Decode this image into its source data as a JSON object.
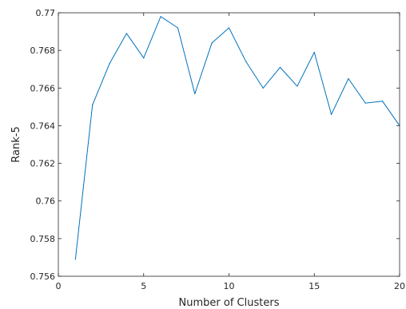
{
  "chart_data": {
    "type": "line",
    "title": "",
    "xlabel": "Number of Clusters",
    "ylabel": "Rank-5",
    "xlim": [
      0,
      20
    ],
    "ylim": [
      0.756,
      0.77
    ],
    "xticks": [
      0,
      5,
      10,
      15,
      20
    ],
    "yticks": [
      0.756,
      0.758,
      0.76,
      0.762,
      0.764,
      0.766,
      0.768,
      0.77
    ],
    "xtick_labels": [
      "0",
      "5",
      "10",
      "15",
      "20"
    ],
    "ytick_labels": [
      "0.756",
      "0.758",
      "0.76",
      "0.762",
      "0.764",
      "0.766",
      "0.768",
      "0.77"
    ],
    "grid": false,
    "box": true,
    "series": [
      {
        "color": "#0072bd",
        "x": [
          1,
          2,
          3,
          4,
          5,
          6,
          7,
          8,
          9,
          10,
          11,
          12,
          13,
          14,
          15,
          16,
          17,
          18,
          19,
          20
        ],
        "y": [
          0.7569,
          0.7651,
          0.7673,
          0.7689,
          0.7676,
          0.7698,
          0.7692,
          0.7657,
          0.7684,
          0.7692,
          0.7674,
          0.766,
          0.7671,
          0.7661,
          0.7679,
          0.7646,
          0.7665,
          0.7652,
          0.7653,
          0.764
        ]
      }
    ]
  }
}
